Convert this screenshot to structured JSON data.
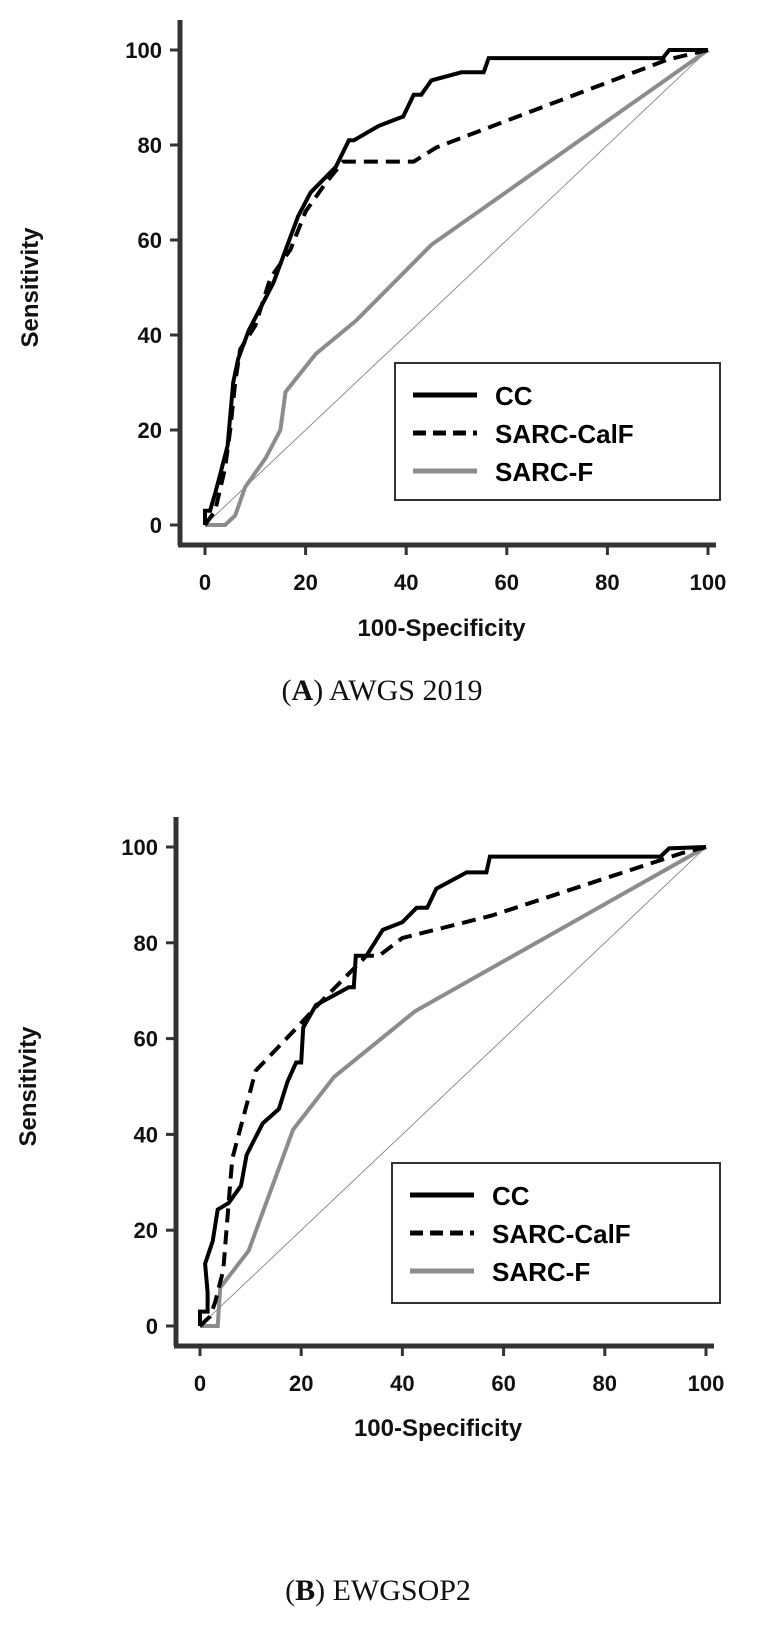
{
  "chart_data": [
    {
      "type": "line",
      "panel_letter": "A",
      "caption": "AWGS 2019",
      "xlabel": "100-Specificity",
      "ylabel": "Sensitivity",
      "xlim": [
        0,
        100
      ],
      "ylim": [
        0,
        100
      ],
      "xticks": [
        "0",
        "20",
        "40",
        "60",
        "80",
        "100"
      ],
      "yticks": [
        "0",
        "20",
        "40",
        "60",
        "80",
        "100"
      ],
      "grid": false,
      "legend_position": "bottom-right",
      "reference_line": [
        [
          0,
          0
        ],
        [
          100,
          100
        ]
      ],
      "series": [
        {
          "name": "CC",
          "style": "solid",
          "color": "#000000",
          "points": [
            [
              0,
              0
            ],
            [
              0,
              3
            ],
            [
              1,
              3
            ],
            [
              2,
              6.6
            ],
            [
              3.1,
              11
            ],
            [
              4.5,
              16.7
            ],
            [
              5.6,
              30
            ],
            [
              6.6,
              35
            ],
            [
              7.3,
              37
            ],
            [
              8.7,
              41
            ],
            [
              13.6,
              51
            ],
            [
              18.5,
              65
            ],
            [
              21,
              70
            ],
            [
              26,
              75.4
            ],
            [
              28.6,
              81
            ],
            [
              29.6,
              81
            ],
            [
              34.5,
              84
            ],
            [
              39.4,
              86
            ],
            [
              41.5,
              90.6
            ],
            [
              43,
              90.6
            ],
            [
              45,
              93.6
            ],
            [
              51,
              95.3
            ],
            [
              55.4,
              95.3
            ],
            [
              56.4,
              98.3
            ],
            [
              91,
              98.3
            ],
            [
              92.3,
              100
            ],
            [
              100,
              100
            ]
          ]
        },
        {
          "name": "SARC-CalF",
          "style": "dashed",
          "color": "#000000",
          "points": [
            [
              0,
              0
            ],
            [
              2,
              3
            ],
            [
              4,
              12
            ],
            [
              5,
              20
            ],
            [
              6,
              30
            ],
            [
              7,
              37
            ],
            [
              10,
              42
            ],
            [
              13,
              52
            ],
            [
              17,
              58
            ],
            [
              20,
              66
            ],
            [
              24,
              72
            ],
            [
              27.5,
              76.5
            ],
            [
              41.5,
              76.5
            ],
            [
              46,
              79.5
            ],
            [
              92,
              98
            ],
            [
              100,
              100
            ]
          ]
        },
        {
          "name": "SARC-F",
          "style": "solid",
          "color": "#8c8c8c",
          "points": [
            [
              0,
              0
            ],
            [
              4,
              0
            ],
            [
              6,
              2
            ],
            [
              8,
              8
            ],
            [
              12,
              14
            ],
            [
              15,
              20
            ],
            [
              16,
              28
            ],
            [
              22,
              36
            ],
            [
              30,
              43
            ],
            [
              45,
              59
            ],
            [
              100,
              100
            ]
          ]
        }
      ]
    },
    {
      "type": "line",
      "panel_letter": "B",
      "caption": "EWGSOP2",
      "xlabel": "100-Specificity",
      "ylabel": "Sensitivity",
      "xlim": [
        0,
        100
      ],
      "ylim": [
        0,
        100
      ],
      "xticks": [
        "0",
        "20",
        "40",
        "60",
        "80",
        "100"
      ],
      "yticks": [
        "0",
        "20",
        "40",
        "60",
        "80",
        "100"
      ],
      "grid": false,
      "legend_position": "bottom-right",
      "reference_line": [
        [
          0,
          0
        ],
        [
          100,
          100
        ]
      ],
      "series": [
        {
          "name": "CC",
          "style": "solid",
          "color": "#000000",
          "points": [
            [
              0,
              0
            ],
            [
              0,
              3
            ],
            [
              1.5,
              3
            ],
            [
              1.5,
              7
            ],
            [
              1,
              13
            ],
            [
              2.5,
              17.7
            ],
            [
              3.5,
              24.3
            ],
            [
              5.7,
              25.7
            ],
            [
              8.1,
              29.3
            ],
            [
              9.2,
              35.7
            ],
            [
              10.3,
              38
            ],
            [
              12.4,
              42.3
            ],
            [
              15.6,
              45.3
            ],
            [
              17.3,
              51
            ],
            [
              19,
              55
            ],
            [
              20,
              55
            ],
            [
              20.4,
              62.3
            ],
            [
              22.9,
              67
            ],
            [
              29.4,
              70.7
            ],
            [
              30.4,
              70.7
            ],
            [
              30.8,
              77.3
            ],
            [
              32.9,
              77.3
            ],
            [
              36.1,
              82.7
            ],
            [
              40,
              84.3
            ],
            [
              42.8,
              87.3
            ],
            [
              44.9,
              87.3
            ],
            [
              46.7,
              91.3
            ],
            [
              52.7,
              94.7
            ],
            [
              56.6,
              94.7
            ],
            [
              57.3,
              98
            ],
            [
              91,
              98
            ],
            [
              92.7,
              99.7
            ],
            [
              100,
              100
            ]
          ]
        },
        {
          "name": "SARC-CalF",
          "style": "dashed",
          "color": "#000000",
          "points": [
            [
              0,
              0
            ],
            [
              2,
              2
            ],
            [
              3,
              5
            ],
            [
              4.6,
              11.7
            ],
            [
              6,
              30.3
            ],
            [
              6.4,
              35
            ],
            [
              11,
              53.3
            ],
            [
              19.5,
              62.7
            ],
            [
              23,
              66.7
            ],
            [
              30.1,
              74.3
            ],
            [
              32.9,
              77.3
            ],
            [
              35.4,
              77.3
            ],
            [
              40,
              81
            ],
            [
              57.7,
              85.7
            ],
            [
              95.2,
              98.7
            ],
            [
              100,
              100
            ]
          ]
        },
        {
          "name": "SARC-F",
          "style": "solid",
          "color": "#8c8c8c",
          "points": [
            [
              0,
              0
            ],
            [
              3.5,
              0
            ],
            [
              4,
              8
            ],
            [
              9.6,
              15.7
            ],
            [
              18.4,
              41
            ],
            [
              26.5,
              52
            ],
            [
              42.5,
              65.7
            ],
            [
              100,
              100
            ]
          ]
        }
      ]
    }
  ]
}
